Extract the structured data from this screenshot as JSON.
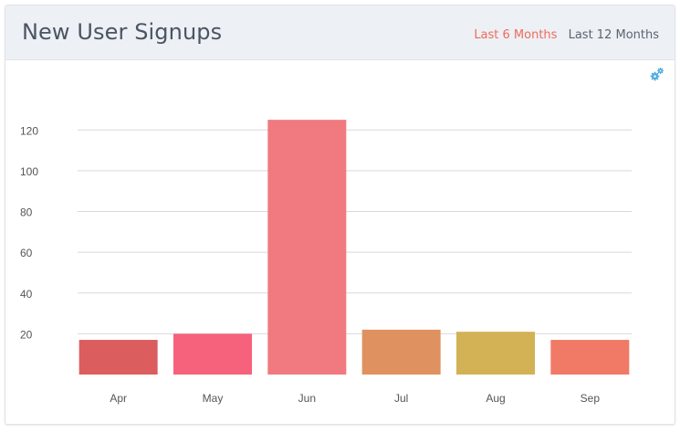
{
  "widget": {
    "title": "New User Signups",
    "range_tabs": [
      {
        "label": "Last 6 Months",
        "active": true
      },
      {
        "label": "Last 12 Months",
        "active": false
      }
    ],
    "icon": "gears-icon"
  },
  "colors": {
    "active_tab": "#ee6b5e",
    "inactive_tab": "#5b6470",
    "gridline": "#d9d9d9",
    "axis_text": "#555555"
  },
  "chart_data": {
    "type": "bar",
    "categories": [
      "Apr",
      "May",
      "Jun",
      "Jul",
      "Aug",
      "Sep"
    ],
    "values": [
      17,
      20,
      125,
      22,
      21,
      17
    ],
    "colors": [
      "#dc5d5d",
      "#f6617c",
      "#f07a7f",
      "#df925f",
      "#d3b255",
      "#f07a66"
    ],
    "title": "",
    "xlabel": "",
    "ylabel": "",
    "ylim": [
      0,
      130
    ],
    "yticks": [
      20,
      40,
      60,
      80,
      100,
      120
    ],
    "grid": true
  }
}
